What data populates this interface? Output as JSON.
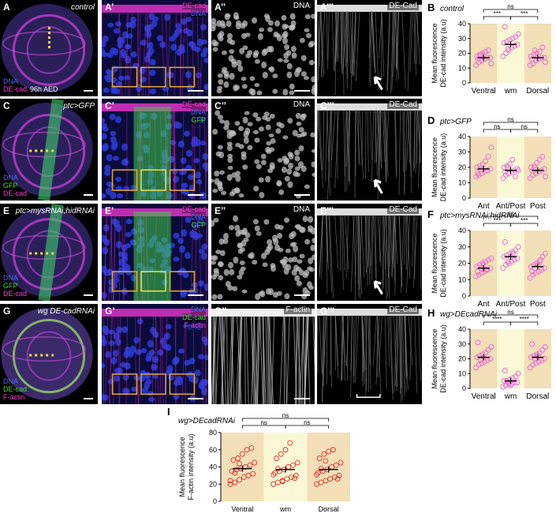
{
  "rows": [
    {
      "wing": {
        "label": "A",
        "title": "control",
        "stage": "96h AED",
        "ch": [
          "DNA",
          "DE-cad"
        ],
        "chColors": [
          "#4a6bff",
          "#ff3ad6"
        ]
      },
      "merge": {
        "label": "A’",
        "ch": [
          "DE-cad",
          "DNA"
        ],
        "chColors": [
          "#ff3ad6",
          "#4a6bff"
        ]
      },
      "dna": {
        "label": "A’’",
        "ch": "DNA"
      },
      "cad": {
        "label": "A’’’",
        "ch": "DE-Cad"
      }
    },
    {
      "wing": {
        "label": "C",
        "title": "ptc>GFP",
        "ch": [
          "DNA",
          "GFP",
          "DE-cad"
        ],
        "chColors": [
          "#4a6bff",
          "#44dd44",
          "#ff3ad6"
        ]
      },
      "merge": {
        "label": "C’",
        "ch": [
          "DE-cad",
          "DNA",
          "GFP"
        ],
        "chColors": [
          "#ff3ad6",
          "#4a6bff",
          "#44dd44"
        ]
      },
      "dna": {
        "label": "C’’",
        "ch": "DNA"
      },
      "cad": {
        "label": "C’’’",
        "ch": "DE-Cad"
      }
    },
    {
      "wing": {
        "label": "E",
        "title": "ptc>mysRNAi;hidRNAi",
        "ch": [
          "DNA",
          "GFP",
          "DE-cad"
        ],
        "chColors": [
          "#4a6bff",
          "#44dd44",
          "#ff3ad6"
        ]
      },
      "merge": {
        "label": "E’",
        "ch": [
          "DE-cad",
          "DNA",
          "GFP"
        ],
        "chColors": [
          "#ff3ad6",
          "#4a6bff",
          "#44dd44"
        ]
      },
      "dna": {
        "label": "E’’",
        "ch": "DNA"
      },
      "cad": {
        "label": "E’’’",
        "ch": "DE-Cad"
      }
    },
    {
      "wing": {
        "label": "G",
        "title": "wg DE-cadRNAi",
        "ch": [
          "DNA",
          "DE-cad",
          "F-actin"
        ],
        "chColors": [
          "#4a6bff",
          "#44dd44",
          "#ff3ad6"
        ]
      },
      "merge": {
        "label": "G’",
        "ch": [
          "DNA",
          "DE-cad",
          "F-actin"
        ],
        "chColors": [
          "#4a6bff",
          "#44dd44",
          "#ff3ad6"
        ]
      },
      "dna": {
        "label": "G’’",
        "ch": "F-actin"
      },
      "cad": {
        "label": "G’’’",
        "ch": "DE-Cad"
      }
    }
  ],
  "chart_data": [
    {
      "panel": "B",
      "title": "control",
      "type": "scatter",
      "categories": [
        "Ventral",
        "wm",
        "Dorsal"
      ],
      "ylabel": "Mean fluorescence DE-cad intensity (a.u)",
      "ylim": [
        0,
        40
      ],
      "yticks": [
        0,
        10,
        20,
        30,
        40
      ],
      "means": [
        17,
        26,
        17
      ],
      "sig": [
        {
          "a": 0,
          "b": 1,
          "t": "***"
        },
        {
          "a": 1,
          "b": 2,
          "t": "***"
        },
        {
          "a": 0,
          "b": 2,
          "t": "ns"
        }
      ],
      "points": [
        [
          12,
          14,
          15,
          16,
          17,
          17,
          18,
          19,
          20,
          21,
          22,
          13,
          16,
          19
        ],
        [
          18,
          20,
          22,
          24,
          25,
          26,
          27,
          28,
          29,
          30,
          31,
          33,
          38,
          23
        ],
        [
          12,
          13,
          15,
          16,
          17,
          17,
          18,
          19,
          20,
          21,
          24,
          14,
          16,
          22
        ]
      ]
    },
    {
      "panel": "D",
      "title": "ptc>GFP",
      "type": "scatter",
      "categories": [
        "Ant",
        "Ant/Post",
        "Post"
      ],
      "ylabel": "Mean fluorescence DE-cad intensity (a.u)",
      "ylim": [
        0,
        40
      ],
      "yticks": [
        0,
        10,
        20,
        30,
        40
      ],
      "means": [
        19,
        18,
        18
      ],
      "sig": [
        {
          "a": 0,
          "b": 1,
          "t": "ns"
        },
        {
          "a": 1,
          "b": 2,
          "t": "ns"
        },
        {
          "a": 0,
          "b": 2,
          "t": "ns"
        }
      ],
      "points": [
        [
          14,
          15,
          16,
          17,
          18,
          19,
          20,
          21,
          22,
          24,
          27,
          33,
          16,
          19
        ],
        [
          13,
          15,
          16,
          17,
          18,
          19,
          20,
          21,
          22,
          25,
          14,
          18,
          17,
          20
        ],
        [
          13,
          15,
          16,
          17,
          18,
          19,
          20,
          21,
          23,
          25,
          27,
          14,
          18,
          20
        ]
      ]
    },
    {
      "panel": "F",
      "title": "ptc>mysRNAi;hidRNAi",
      "type": "scatter",
      "categories": [
        "Ant",
        "Ant/Post",
        "Post"
      ],
      "ylabel": "Mean fluorescence DE-cad intensity (a.u)",
      "ylim": [
        0,
        40
      ],
      "yticks": [
        0,
        10,
        20,
        30,
        40
      ],
      "means": [
        17,
        24,
        18
      ],
      "sig": [
        {
          "a": 0,
          "b": 1,
          "t": "***"
        },
        {
          "a": 1,
          "b": 2,
          "t": "***"
        },
        {
          "a": 0,
          "b": 2,
          "t": "ns"
        }
      ],
      "points": [
        [
          12,
          13,
          14,
          15,
          16,
          17,
          18,
          19,
          20,
          21,
          22,
          23,
          15,
          17,
          19,
          16
        ],
        [
          17,
          19,
          20,
          21,
          22,
          23,
          24,
          25,
          26,
          27,
          28,
          30,
          33,
          21,
          24,
          26
        ],
        [
          11,
          13,
          14,
          15,
          16,
          17,
          18,
          19,
          20,
          21,
          24,
          26,
          15,
          17,
          19,
          22
        ]
      ]
    },
    {
      "panel": "H",
      "title": "wg>DEcadRNAi",
      "type": "scatter",
      "categories": [
        "Ventral",
        "wm",
        "Dorsal"
      ],
      "ylabel": "Mean fluorescence DE-cad intensity (a.u)",
      "ylim": [
        0,
        40
      ],
      "yticks": [
        0,
        10,
        20,
        30,
        40
      ],
      "means": [
        21,
        5,
        21
      ],
      "sig": [
        {
          "a": 0,
          "b": 1,
          "t": "****"
        },
        {
          "a": 1,
          "b": 2,
          "t": "****"
        },
        {
          "a": 0,
          "b": 2,
          "t": "ns"
        }
      ],
      "points": [
        [
          14,
          16,
          17,
          18,
          19,
          20,
          21,
          22,
          23,
          24,
          26,
          28,
          31,
          19,
          21
        ],
        [
          1,
          2,
          3,
          3,
          4,
          4,
          5,
          5,
          6,
          7,
          8,
          10,
          12,
          4,
          2
        ],
        [
          14,
          16,
          17,
          18,
          19,
          20,
          21,
          22,
          23,
          24,
          26,
          28,
          30,
          20,
          22
        ]
      ]
    },
    {
      "panel": "I",
      "title": "wg>DEcadRNAi",
      "type": "scatter",
      "categories": [
        "Ventral",
        "wm",
        "Dorsal"
      ],
      "ylabel": "Mean fluorescence F-actin intensity (a.u)",
      "ylim": [
        0,
        80
      ],
      "yticks": [
        0,
        20,
        40,
        60,
        80
      ],
      "means": [
        38,
        37,
        37
      ],
      "sig": [
        {
          "a": 0,
          "b": 1,
          "t": "ns"
        },
        {
          "a": 1,
          "b": 2,
          "t": "ns"
        },
        {
          "a": 0,
          "b": 2,
          "t": "ns"
        }
      ],
      "points": [
        [
          20,
          22,
          25,
          28,
          30,
          32,
          35,
          37,
          38,
          40,
          42,
          45,
          48,
          50,
          55,
          60,
          62,
          24,
          33,
          44
        ],
        [
          20,
          22,
          24,
          26,
          28,
          30,
          33,
          35,
          37,
          40,
          42,
          45,
          50,
          55,
          60,
          68,
          27,
          31,
          38,
          23
        ],
        [
          20,
          22,
          24,
          26,
          28,
          30,
          33,
          35,
          37,
          40,
          42,
          45,
          50,
          55,
          58,
          60,
          26,
          31,
          38,
          47
        ]
      ]
    }
  ]
}
